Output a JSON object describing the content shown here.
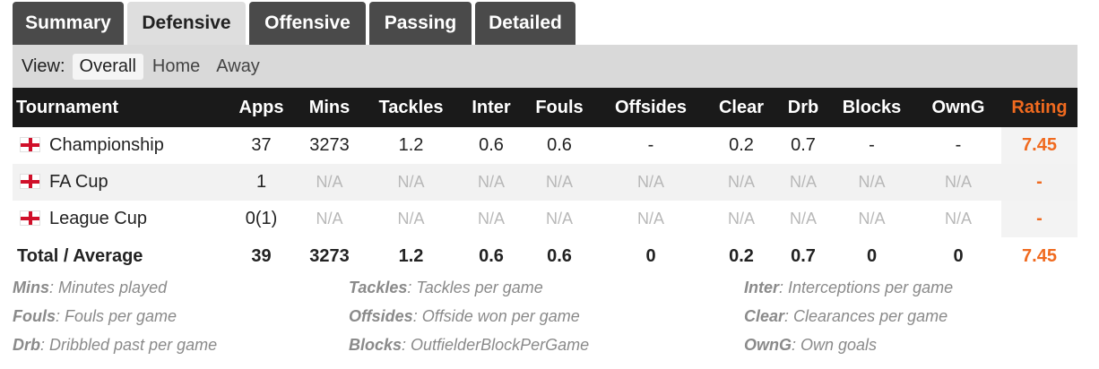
{
  "tabs": [
    "Summary",
    "Defensive",
    "Offensive",
    "Passing",
    "Detailed"
  ],
  "active_tab": "Defensive",
  "view": {
    "label": "View:",
    "options": [
      "Overall",
      "Home",
      "Away"
    ],
    "active": "Overall"
  },
  "columns": [
    "Tournament",
    "Apps",
    "Mins",
    "Tackles",
    "Inter",
    "Fouls",
    "Offsides",
    "Clear",
    "Drb",
    "Blocks",
    "OwnG",
    "Rating"
  ],
  "rows": [
    {
      "tournament": "Championship",
      "flag_icon": "england-flag-icon",
      "apps": "37",
      "mins": "3273",
      "tackles": "1.2",
      "inter": "0.6",
      "fouls": "0.6",
      "offsides": "-",
      "clear": "0.2",
      "drb": "0.7",
      "blocks": "-",
      "owng": "-",
      "rating": "7.45"
    },
    {
      "tournament": "FA Cup",
      "flag_icon": "england-flag-icon",
      "apps": "1",
      "mins": "N/A",
      "tackles": "N/A",
      "inter": "N/A",
      "fouls": "N/A",
      "offsides": "N/A",
      "clear": "N/A",
      "drb": "N/A",
      "blocks": "N/A",
      "owng": "N/A",
      "rating": "-"
    },
    {
      "tournament": "League Cup",
      "flag_icon": "england-flag-icon",
      "apps": "0(1)",
      "mins": "N/A",
      "tackles": "N/A",
      "inter": "N/A",
      "fouls": "N/A",
      "offsides": "N/A",
      "clear": "N/A",
      "drb": "N/A",
      "blocks": "N/A",
      "owng": "N/A",
      "rating": "-"
    }
  ],
  "total": {
    "label": "Total / Average",
    "apps": "39",
    "mins": "3273",
    "tackles": "1.2",
    "inter": "0.6",
    "fouls": "0.6",
    "offsides": "0",
    "clear": "0.2",
    "drb": "0.7",
    "blocks": "0",
    "owng": "0",
    "rating": "7.45"
  },
  "legend": [
    {
      "key": "Mins",
      "desc": ": Minutes played"
    },
    {
      "key": "Tackles",
      "desc": ": Tackles per game"
    },
    {
      "key": "Inter",
      "desc": ": Interceptions per game"
    },
    {
      "key": "Fouls",
      "desc": ": Fouls per game"
    },
    {
      "key": "Offsides",
      "desc": ": Offside won per game"
    },
    {
      "key": "Clear",
      "desc": ": Clearances per game"
    },
    {
      "key": "Drb",
      "desc": ": Dribbled past per game"
    },
    {
      "key": "Blocks",
      "desc": ": OutfielderBlockPerGame"
    },
    {
      "key": "OwnG",
      "desc": ": Own goals"
    }
  ],
  "colors": {
    "tab_bg": "#4a4a4a",
    "tab_active_bg": "#dedede",
    "header_bg": "#1a1a1a",
    "rating": "#f06a1f",
    "na_text": "#b8b8b8"
  }
}
